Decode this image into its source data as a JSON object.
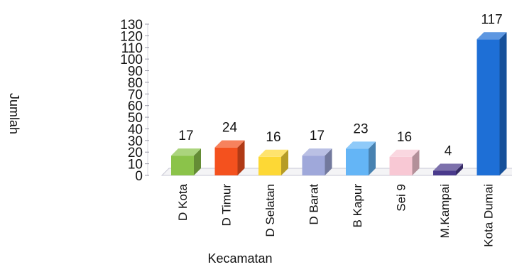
{
  "chart_data": {
    "type": "bar",
    "categories": [
      "D Kota",
      "D Timur",
      "D Selatan",
      "D Barat",
      "B Kapur",
      "Sei 9",
      "M.Kampai",
      "Kota Dumai"
    ],
    "values": [
      17,
      24,
      16,
      17,
      23,
      16,
      4,
      117
    ],
    "data_labels": [
      "17",
      "24",
      "16",
      "17",
      "23",
      "16",
      "4",
      "117"
    ],
    "colors": [
      "#8bc34a",
      "#f4511e",
      "#fdd835",
      "#9fa8da",
      "#64b5f6",
      "#f8c8d4",
      "#4a3a8c",
      "#1e6fd6"
    ],
    "xlabel": "Kecamatan",
    "ylabel": "Jumlah",
    "ylim": [
      0,
      130
    ],
    "yticks": [
      0,
      10,
      20,
      30,
      40,
      50,
      60,
      70,
      80,
      90,
      100,
      110,
      120,
      130
    ],
    "grid": false,
    "legend": "none",
    "style": "3d-bar"
  }
}
